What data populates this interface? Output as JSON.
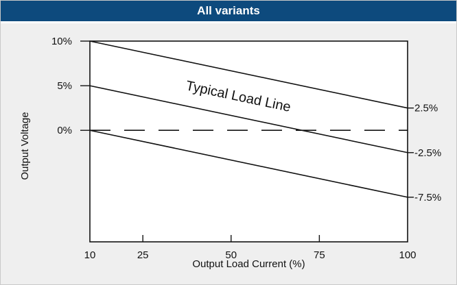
{
  "header": {
    "title": "All variants"
  },
  "colors": {
    "header_bg": "#0d4a7d",
    "panel_bg": "#efefef",
    "plot_bg": "#ffffff",
    "line": "#111111"
  },
  "chart_data": {
    "type": "line",
    "title": "",
    "annotation": "Typical Load Line",
    "xlabel": "Output Load Current (%)",
    "ylabel": "Output Voltage",
    "xlim": [
      10,
      100
    ],
    "ylim": [
      -12.5,
      10
    ],
    "x_ticks": [
      10,
      25,
      50,
      75,
      100
    ],
    "y_ticks_left": [
      {
        "value": 10,
        "label": "10%"
      },
      {
        "value": 5,
        "label": "5%"
      },
      {
        "value": 0,
        "label": "0%"
      }
    ],
    "y_ticks_right": [
      {
        "value": 2.5,
        "label": "2.5%"
      },
      {
        "value": -2.5,
        "label": "-2.5%"
      },
      {
        "value": -7.5,
        "label": "-7.5%"
      }
    ],
    "series": [
      {
        "x": [
          10,
          100
        ],
        "y": [
          10,
          2.5
        ],
        "style": "solid"
      },
      {
        "x": [
          10,
          100
        ],
        "y": [
          5,
          -2.5
        ],
        "style": "solid"
      },
      {
        "x": [
          10,
          100
        ],
        "y": [
          0,
          -7.5
        ],
        "style": "solid"
      },
      {
        "x": [
          10,
          100
        ],
        "y": [
          0,
          0
        ],
        "style": "dashed"
      }
    ]
  }
}
